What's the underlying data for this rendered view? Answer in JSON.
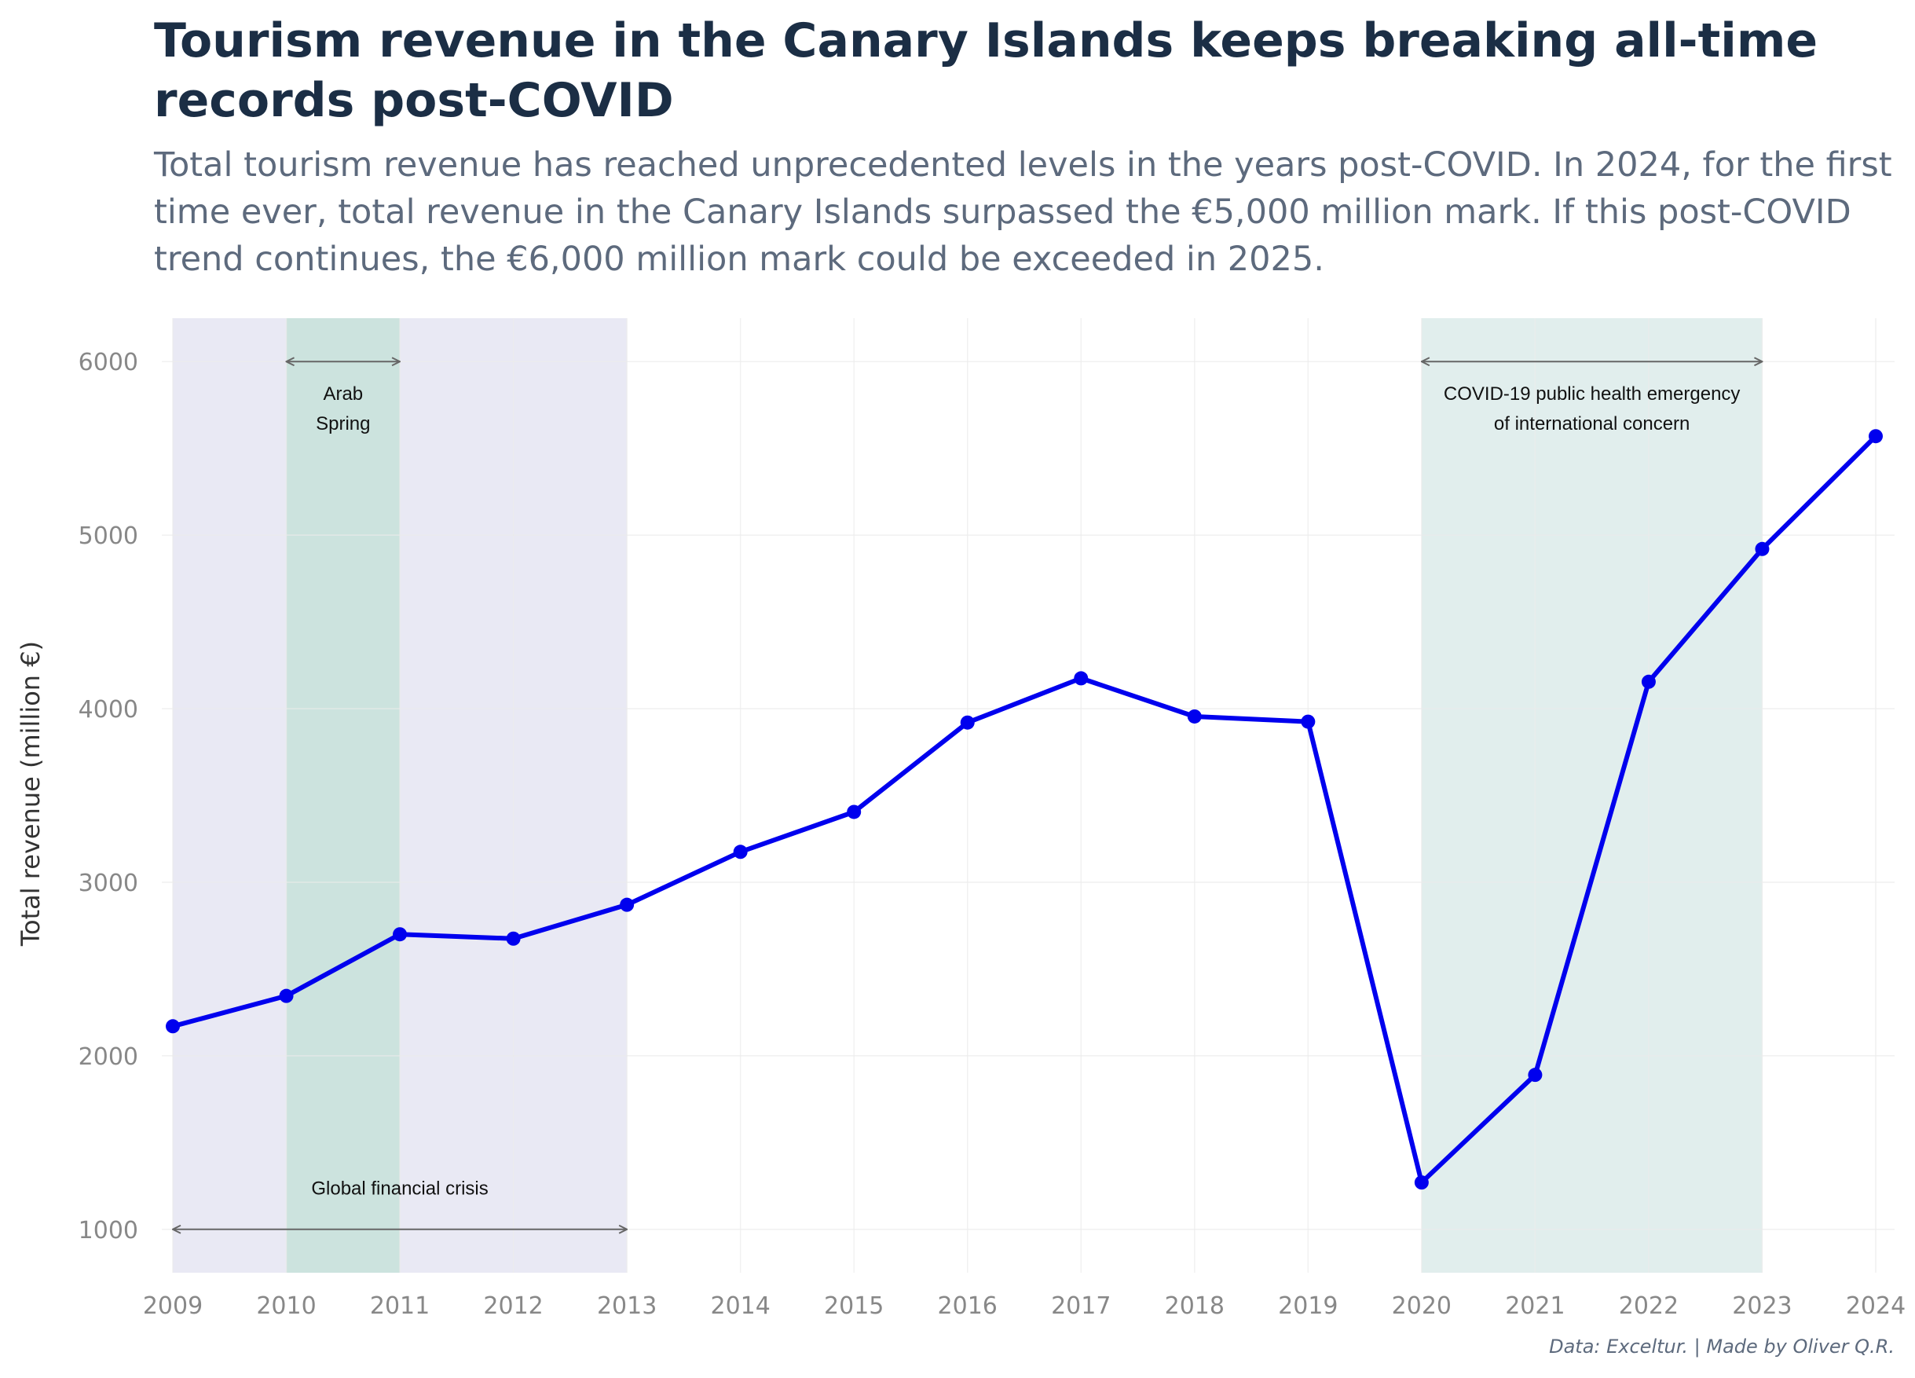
{
  "title": "Tourism revenue in the Canary Islands keeps breaking all-time records post-COVID",
  "subtitle": "Total tourism revenue has reached unprecedented levels in the years post-COVID. In 2024, for the first time ever, total revenue in the Canary Islands surpassed the €5,000 million mark. If this post-COVID trend continues, the €6,000 million mark could be exceeded in 2025.",
  "caption": "Data: Exceltur. | Made by Oliver Q.R.",
  "colors": {
    "line": "#0000ee",
    "financial_crisis_band": "#e9e9f4",
    "arab_spring_band": "#cce3de",
    "covid_band": "#e1eeed",
    "annotation_arrow": "#666666",
    "title": "#1b2e45",
    "subtitle": "#5d6a7d",
    "tick_text": "#888888"
  },
  "chart_data": {
    "type": "line",
    "title": "Tourism revenue in the Canary Islands keeps breaking all-time records post-COVID",
    "xlabel": "",
    "ylabel": "Total revenue (million €)",
    "x": [
      2009,
      2010,
      2011,
      2012,
      2013,
      2014,
      2015,
      2016,
      2017,
      2018,
      2019,
      2020,
      2021,
      2022,
      2023,
      2024
    ],
    "y": [
      2170,
      2345,
      2700,
      2675,
      2870,
      3175,
      3405,
      3920,
      4175,
      3955,
      3925,
      1270,
      1890,
      4155,
      4920,
      5570
    ],
    "xlim": [
      2009,
      2024
    ],
    "ylim": [
      750,
      6250
    ],
    "x_ticks": [
      "2009",
      "2010",
      "2011",
      "2012",
      "2013",
      "2014",
      "2015",
      "2016",
      "2017",
      "2018",
      "2019",
      "2020",
      "2021",
      "2022",
      "2023",
      "2024"
    ],
    "y_ticks": [
      "1000",
      "2000",
      "3000",
      "4000",
      "5000",
      "6000"
    ],
    "grid": true,
    "legend": "none",
    "annotations": [
      {
        "id": "financial",
        "label_lines": [
          "Global financial crisis"
        ],
        "x_start": 2009,
        "x_end": 2013,
        "arrow_y": 1000,
        "label_y": 1200
      },
      {
        "id": "arab",
        "label_lines": [
          "Arab",
          "Spring"
        ],
        "x_start": 2010,
        "x_end": 2011,
        "arrow_y": 6000,
        "label_y": 5780
      },
      {
        "id": "covid",
        "label_lines": [
          "COVID-19 public health emergency",
          "of international concern"
        ],
        "x_start": 2020,
        "x_end": 2023,
        "arrow_y": 6000,
        "label_y": 5780
      }
    ]
  }
}
